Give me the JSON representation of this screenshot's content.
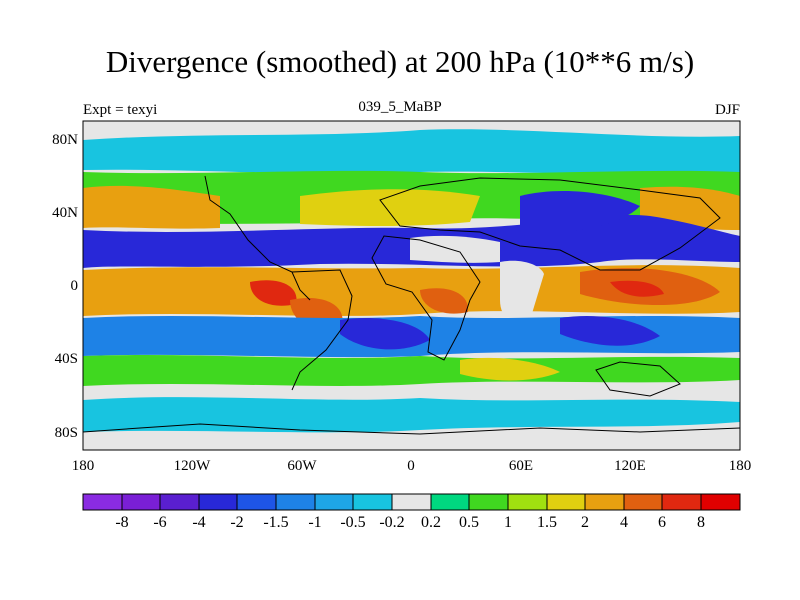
{
  "title": "Divergence (smoothed) at 200 hPa (10**6 m/s)",
  "left_label": "Expt = texyi",
  "center_label": "039_5_MaBP",
  "right_label": "DJF",
  "axes": {
    "x_ticks": [
      "180",
      "120W",
      "60W",
      "0",
      "60E",
      "120E",
      "180"
    ],
    "y_ticks": [
      "80N",
      "40N",
      "0",
      "40S",
      "80S"
    ]
  },
  "colorbar": {
    "labels": [
      "-8",
      "-6",
      "-4",
      "-2",
      "-1.5",
      "-1",
      "-0.5",
      "-0.2",
      "0.2",
      "0.5",
      "1",
      "1.5",
      "2",
      "4",
      "6",
      "8"
    ],
    "colors": [
      "#8a2be2",
      "#7a1fd6",
      "#5a1fd0",
      "#2828d8",
      "#1e55e6",
      "#1e82e6",
      "#1ea6e6",
      "#18c4e0",
      "#e6e6e6",
      "#00d880",
      "#40d820",
      "#a0e010",
      "#e0d010",
      "#e8a010",
      "#e06010",
      "#e02810",
      "#e00000"
    ]
  },
  "map": {
    "background_color": "#e6e6e6",
    "features": [
      {
        "name": "western-pacific-divergence-max",
        "x": 112,
        "y": -10,
        "rx": 48,
        "ry": 16,
        "color": "#e06010"
      },
      {
        "name": "south-america-divergence-max",
        "x": -55,
        "y": -8,
        "rx": 22,
        "ry": 14,
        "color": "#e06010"
      },
      {
        "name": "africa-divergence-max",
        "x": 20,
        "y": -8,
        "rx": 18,
        "ry": 12,
        "color": "#e8a010"
      },
      {
        "name": "north-atlantic-convergence",
        "x": -40,
        "y": 18,
        "rx": 60,
        "ry": 12,
        "color": "#2828d8"
      },
      {
        "name": "eurasia-convergence",
        "x": 70,
        "y": 35,
        "rx": 50,
        "ry": 14,
        "color": "#2828d8"
      },
      {
        "name": "east-pacific-convergence",
        "x": -130,
        "y": 20,
        "rx": 40,
        "ry": 10,
        "color": "#2828d8"
      },
      {
        "name": "north-pacific-divergence",
        "x": -165,
        "y": 40,
        "rx": 20,
        "ry": 10,
        "color": "#e8a010"
      },
      {
        "name": "southern-ocean-band",
        "x": 0,
        "y": -78,
        "rx": 150,
        "ry": 6,
        "color": "#18c4e0"
      }
    ]
  }
}
